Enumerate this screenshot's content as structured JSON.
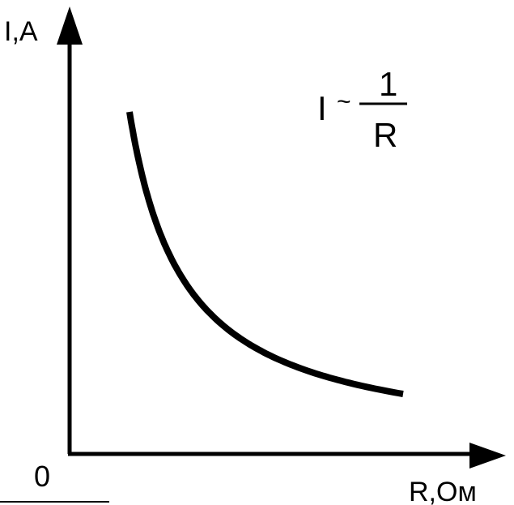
{
  "chart_data": {
    "type": "line",
    "ylabel": "I,A",
    "xlabel": "R,Ом",
    "origin_label": "0",
    "formula": {
      "lhs": "I",
      "relation": "~",
      "numerator": "1",
      "denominator": "R"
    },
    "series": [
      {
        "relation": "inverse",
        "x_range": [
          1,
          6
        ],
        "y_range": [
          6,
          1
        ]
      }
    ],
    "axis_arrows": true,
    "grid": false,
    "legend": "none"
  },
  "colors": {
    "ink": "#000000",
    "background": "#ffffff"
  }
}
